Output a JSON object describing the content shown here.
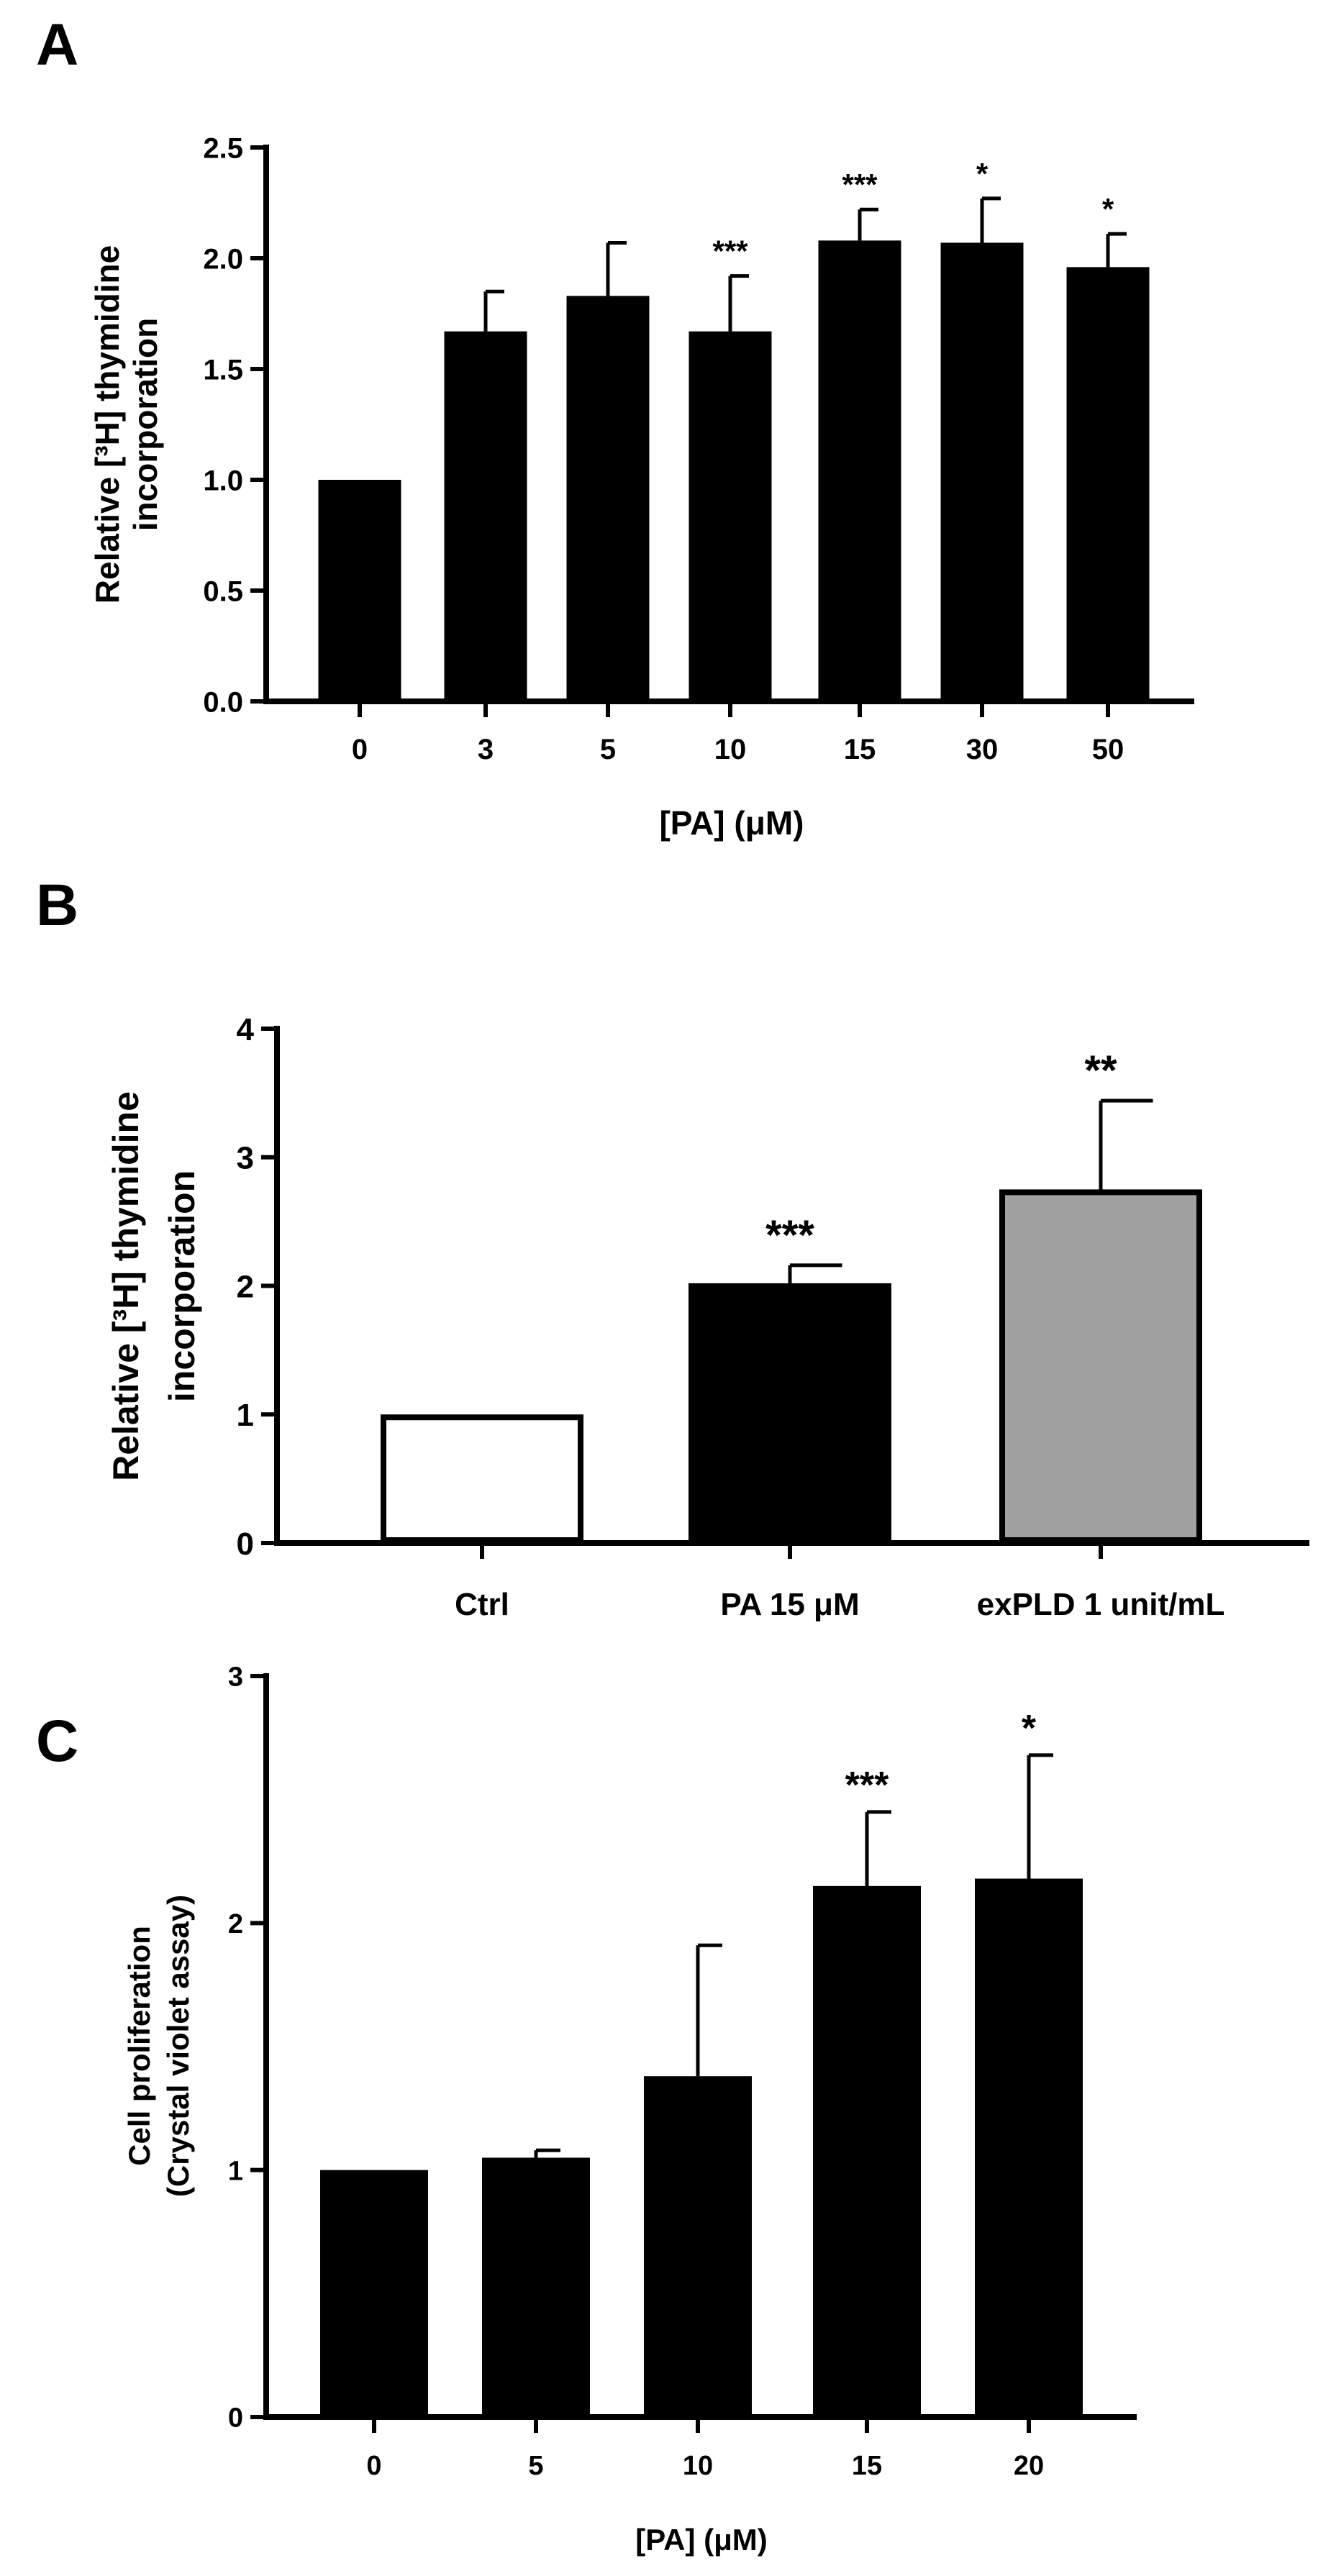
{
  "panels": [
    {
      "letter": "A",
      "chart_data": {
        "type": "bar",
        "categories": [
          "0",
          "3",
          "5",
          "10",
          "15",
          "30",
          "50"
        ],
        "values": [
          1.0,
          1.67,
          1.83,
          1.67,
          2.08,
          2.07,
          1.96
        ],
        "errors": [
          0,
          0.18,
          0.24,
          0.25,
          0.14,
          0.2,
          0.15
        ],
        "annotations": [
          "",
          "",
          "",
          "***",
          "***",
          "*",
          "*"
        ],
        "bar_colors": [
          "#000000",
          "#000000",
          "#000000",
          "#000000",
          "#000000",
          "#000000",
          "#000000"
        ],
        "title": "",
        "xlabel": "[PA] (μM)",
        "ylabel_lines": [
          "Relative [³H] thymidine",
          "incorporation"
        ],
        "ylim": [
          0,
          2.5
        ],
        "yticks": [
          "0.0",
          "0.5",
          "1.0",
          "1.5",
          "2.0",
          "2.5"
        ],
        "grid": false,
        "legend": "none"
      }
    },
    {
      "letter": "B",
      "chart_data": {
        "type": "bar",
        "categories": [
          "Ctrl",
          "PA 15 μM",
          "exPLD 1 unit/mL"
        ],
        "values": [
          1.0,
          2.02,
          2.75
        ],
        "errors": [
          0,
          0.14,
          0.69
        ],
        "annotations": [
          "",
          "***",
          "**"
        ],
        "bar_colors": [
          "#ffffff",
          "#000000",
          "#a0a0a0"
        ],
        "title": "",
        "xlabel": "",
        "ylabel_lines": [
          "Relative [³H] thymidine",
          "incorporation"
        ],
        "ylim": [
          0,
          4
        ],
        "yticks": [
          "0",
          "1",
          "2",
          "3",
          "4"
        ],
        "grid": false,
        "legend": "none"
      }
    },
    {
      "letter": "C",
      "chart_data": {
        "type": "bar",
        "categories": [
          "0",
          "5",
          "10",
          "15",
          "20"
        ],
        "values": [
          1.0,
          1.05,
          1.38,
          2.15,
          2.18
        ],
        "errors": [
          0,
          0.03,
          0.53,
          0.3,
          0.5
        ],
        "annotations": [
          "",
          "",
          "",
          "***",
          "*"
        ],
        "bar_colors": [
          "#000000",
          "#000000",
          "#000000",
          "#000000",
          "#000000"
        ],
        "title": "",
        "xlabel": "[PA] (μM)",
        "ylabel_lines": [
          "Cell proliferation",
          "(Crystal violet assay)"
        ],
        "ylim": [
          0,
          3
        ],
        "yticks": [
          "0",
          "1",
          "2",
          "3"
        ],
        "grid": false,
        "legend": "none"
      }
    }
  ]
}
